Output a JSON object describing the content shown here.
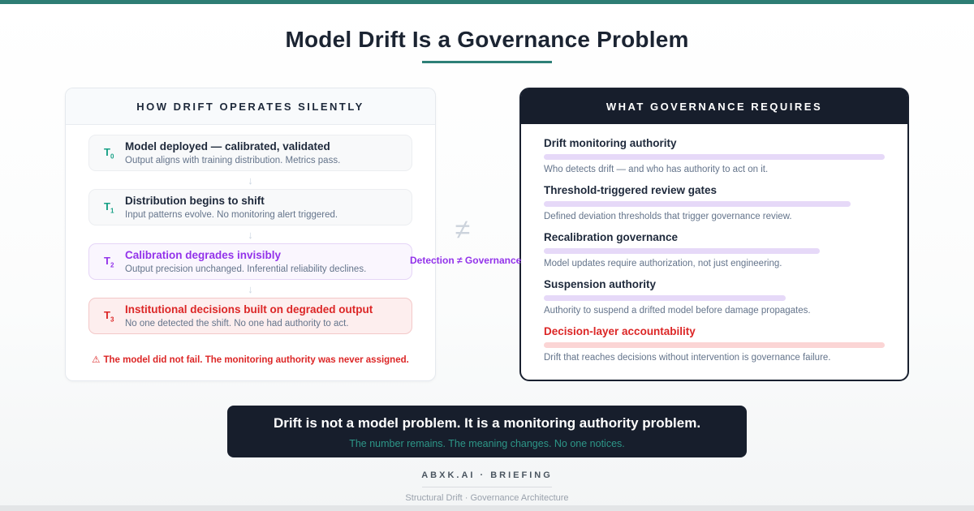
{
  "colors": {
    "teal_accent": "#2e7d74",
    "purple_accent": "#9333ea",
    "red_accent": "#dc2626",
    "navy": "#171e2c",
    "lavender_bar": "#e6d9f8",
    "pink_bar": "#fbd5d5"
  },
  "title": "Model Drift Is a Governance Problem",
  "left_panel": {
    "header": "HOW DRIFT OPERATES SILENTLY",
    "arrow_icon": "↓",
    "stages": [
      {
        "t": "T",
        "sub": "0",
        "variant": "default",
        "title": "Model deployed — calibrated, validated",
        "desc": "Output aligns with training distribution. Metrics pass."
      },
      {
        "t": "T",
        "sub": "1",
        "variant": "default",
        "title": "Distribution begins to shift",
        "desc": "Input patterns evolve. No monitoring alert triggered."
      },
      {
        "t": "T",
        "sub": "2",
        "variant": "purple",
        "title": "Calibration degrades invisibly",
        "desc": "Output precision unchanged. Inferential reliability declines."
      },
      {
        "t": "T",
        "sub": "3",
        "variant": "red",
        "title": "Institutional decisions built on degraded output",
        "desc": "No one detected the shift. No one had authority to act."
      }
    ],
    "warning_icon": "⚠",
    "warning": "The model did not fail. The monitoring authority was never assigned."
  },
  "connector": {
    "symbol": "≠",
    "label": "Detection ≠ Governance"
  },
  "right_panel": {
    "header": "WHAT GOVERNANCE REQUIRES",
    "requirements": [
      {
        "title": "Drift monitoring authority",
        "bar_pct": 100,
        "variant": "purple",
        "desc": "Who detects drift — and who has authority to act on it."
      },
      {
        "title": "Threshold-triggered review gates",
        "bar_pct": 90,
        "variant": "purple",
        "desc": "Defined deviation thresholds that trigger governance review."
      },
      {
        "title": "Recalibration governance",
        "bar_pct": 81,
        "variant": "purple",
        "desc": "Model updates require authorization, not just engineering."
      },
      {
        "title": "Suspension authority",
        "bar_pct": 71,
        "variant": "purple",
        "desc": "Authority to suspend a drifted model before damage propagates."
      },
      {
        "title": "Decision-layer accountability",
        "bar_pct": 100,
        "variant": "red",
        "desc": "Drift that reaches decisions without intervention is governance failure."
      }
    ]
  },
  "banner": {
    "headline": "Drift is not a model problem. It is a monitoring authority problem.",
    "subtext": "The number remains. The meaning changes. No one notices."
  },
  "footer": {
    "brand": "ABXK.AI · BRIEFING",
    "tagline": "Structural Drift · Governance Architecture"
  }
}
